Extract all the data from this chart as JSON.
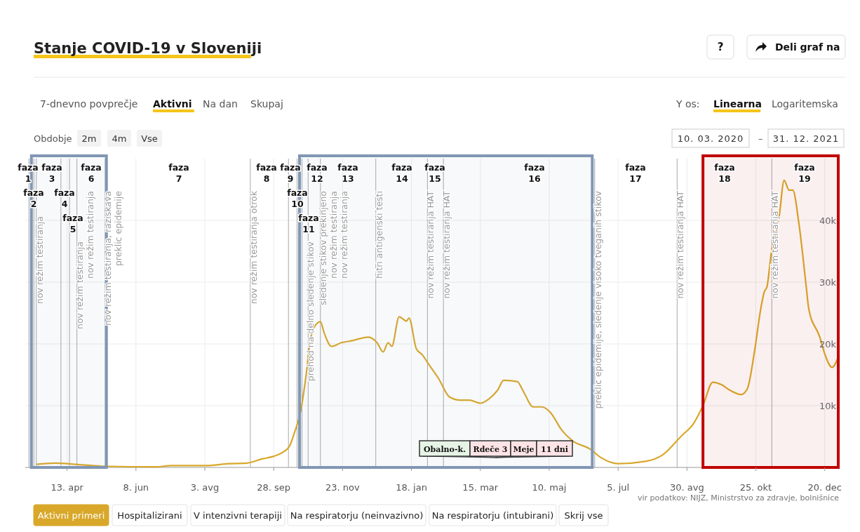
{
  "chart_data": {
    "type": "line",
    "title": "Stanje COVID-19 v Sloveniji",
    "x": [
      "2020-03-19",
      "2020-04-03",
      "2020-04-20",
      "2020-05-11",
      "2020-06-24",
      "2020-07-07",
      "2020-08-06",
      "2020-08-22",
      "2020-09-06",
      "2020-09-19",
      "2020-09-28",
      "2020-10-05",
      "2020-10-11",
      "2020-10-15",
      "2020-10-20",
      "2020-10-24",
      "2020-10-28",
      "2020-11-02",
      "2020-11-05",
      "2020-11-08",
      "2020-11-14",
      "2020-11-22",
      "2020-11-30",
      "2020-12-14",
      "2020-12-21",
      "2020-12-26",
      "2020-12-30",
      "2021-01-02",
      "2021-01-08",
      "2021-01-14",
      "2021-01-16",
      "2021-01-22",
      "2021-01-27",
      "2021-01-31",
      "2021-02-09",
      "2021-02-18",
      "2021-02-27",
      "2021-03-06",
      "2021-03-15",
      "2021-03-22",
      "2021-03-29",
      "2021-04-03",
      "2021-04-14",
      "2021-04-19",
      "2021-04-27",
      "2021-05-04",
      "2021-05-11",
      "2021-05-20",
      "2021-05-29",
      "2021-06-12",
      "2021-06-21",
      "2021-07-05",
      "2021-07-28",
      "2021-08-10",
      "2021-08-26",
      "2021-09-04",
      "2021-09-12",
      "2021-09-20",
      "2021-09-27",
      "2021-10-04",
      "2021-10-13",
      "2021-10-18",
      "2021-10-24",
      "2021-10-29",
      "2021-11-01",
      "2021-11-03",
      "2021-11-07",
      "2021-11-09",
      "2021-11-13",
      "2021-11-17",
      "2021-11-21",
      "2021-11-24",
      "2021-11-29",
      "2021-12-05",
      "2021-12-07",
      "2021-12-16",
      "2021-12-20",
      "2021-12-26",
      "2021-12-31"
    ],
    "series": [
      {
        "color": "#d9a82a",
        "values": [
          500,
          700,
          500,
          200,
          100,
          300,
          300,
          600,
          700,
          1400,
          1800,
          2400,
          3500,
          5700,
          9200,
          14400,
          20900,
          23300,
          23600,
          21800,
          19600,
          20200,
          20500,
          21100,
          20200,
          18700,
          20200,
          19600,
          24400,
          23700,
          24200,
          19200,
          18200,
          17000,
          14400,
          11400,
          10900,
          10900,
          10400,
          11100,
          12500,
          14100,
          13900,
          12300,
          9800,
          9800,
          8900,
          6100,
          4300,
          3000,
          1600,
          600,
          1000,
          2000,
          5200,
          7000,
          10000,
          13800,
          13400,
          12500,
          11800,
          12700,
          18900,
          25700,
          28500,
          29200,
          35300,
          36700,
          40700,
          46500,
          44900,
          44900,
          39500,
          29200,
          25700,
          21100,
          18400,
          16200,
          17900
        ]
      }
    ],
    "xlim": [
      "2020-03-10",
      "2021-12-31"
    ],
    "ylim": [
      0,
      50000
    ],
    "xticks": [
      {
        "value": "2020-04-13",
        "label": "13. apr"
      },
      {
        "value": "2020-06-08",
        "label": "8. jun"
      },
      {
        "value": "2020-08-03",
        "label": "3. avg"
      },
      {
        "value": "2020-09-28",
        "label": "28. sep"
      },
      {
        "value": "2020-11-23",
        "label": "23. nov"
      },
      {
        "value": "2021-01-18",
        "label": "18. jan"
      },
      {
        "value": "2021-03-15",
        "label": "15. mar"
      },
      {
        "value": "2021-05-10",
        "label": "10. maj"
      },
      {
        "value": "2021-07-05",
        "label": "5. jul"
      },
      {
        "value": "2021-08-30",
        "label": "30. avg"
      },
      {
        "value": "2021-10-25",
        "label": "25. okt"
      },
      {
        "value": "2021-12-20",
        "label": "20. dec"
      }
    ],
    "yticks": [
      {
        "value": 10000,
        "label": "10k"
      },
      {
        "value": 20000,
        "label": "20k"
      },
      {
        "value": 30000,
        "label": "30k"
      },
      {
        "value": 40000,
        "label": "40k"
      }
    ],
    "grid": true,
    "bands": [
      {
        "axis": "x",
        "from": "2020-03-15",
        "to": "2020-05-15",
        "color": "#8096b4"
      },
      {
        "axis": "x",
        "from": "2020-10-19",
        "to": "2021-06-14",
        "color": "#8096b4"
      },
      {
        "axis": "x",
        "from": "2021-09-12",
        "to": "2021-12-31",
        "color": "#c00000"
      }
    ],
    "ref_lines": [
      {
        "axis": "x",
        "value": "2020-03-13"
      },
      {
        "axis": "x",
        "value": "2020-03-17"
      },
      {
        "axis": "x",
        "value": "2020-10-21"
      },
      {
        "axis": "x",
        "value": "2020-03-19",
        "label": "nov režim testiranja"
      },
      {
        "axis": "x",
        "value": "2020-04-08",
        "label": "nov režim testiranja"
      },
      {
        "axis": "x",
        "value": "2020-04-15",
        "label": "nov režim testiranja"
      },
      {
        "axis": "x",
        "value": "2020-04-21",
        "label": "nov režim testiranja, raziskava"
      },
      {
        "axis": "x",
        "value": "2020-05-14",
        "label": "preklic epidemije"
      },
      {
        "axis": "x",
        "value": "2020-09-09",
        "label": "nov režim testiranja otrok"
      },
      {
        "axis": "x",
        "value": "2020-10-10",
        "label": "prehod na delno sledenje stikov"
      },
      {
        "axis": "x",
        "value": "2020-10-17",
        "label": "sledenje stikov prekinjeno"
      },
      {
        "axis": "x",
        "value": "2020-10-26",
        "label": "nov režim testiranja"
      },
      {
        "axis": "x",
        "value": "2020-11-05",
        "label": "nov režim testiranja"
      },
      {
        "axis": "x",
        "value": "2020-12-20",
        "label": "hitri antigenski testi"
      },
      {
        "axis": "x",
        "value": "2021-01-31",
        "label": "nov režim testiranja HAT"
      },
      {
        "axis": "x",
        "value": "2021-02-13",
        "label": "nov režim testiranja HAT"
      },
      {
        "axis": "x",
        "value": "2021-06-16",
        "label": "preklic epidemije, sledenje visoko tveganih stikov"
      },
      {
        "axis": "x",
        "value": "2021-08-22",
        "label": "nov režim testiranja HAT"
      },
      {
        "axis": "x",
        "value": "2021-11-07",
        "label": "nov režim testiranja HAT"
      }
    ],
    "annotations": [
      "?",
      "Deli graf na",
      "7-dnevno povprečje",
      "Aktivni",
      "Na dan",
      "Skupaj",
      "Y os:",
      "Linearna",
      "Logaritemska",
      "Obdobje",
      "2m",
      "4m",
      "Vse",
      "10. 03. 2020",
      "–",
      "31. 12. 2021",
      "Aktivni primeri",
      "Hospitalizirani",
      "V intenzivni terapiji",
      "Na respiratorju (neinvazivno)",
      "Na respiratorju (intubirani)",
      "Skrij vse",
      "vir podatkov: NIJZ, Ministrstvo za zdravje, bolnišnice",
      "Obalno-k.",
      "Rdeče 3",
      "Meje",
      "11 dni",
      "faza 1",
      "faza 2",
      "faza 3",
      "faza 4",
      "faza 5",
      "faza 6",
      "faza 7",
      "faza 8",
      "faza 9",
      "faza 10",
      "faza 11",
      "faza 12",
      "faza 13",
      "faza 14",
      "faza 15",
      "faza 16",
      "faza 17",
      "faza 18",
      "faza 19"
    ]
  }
}
